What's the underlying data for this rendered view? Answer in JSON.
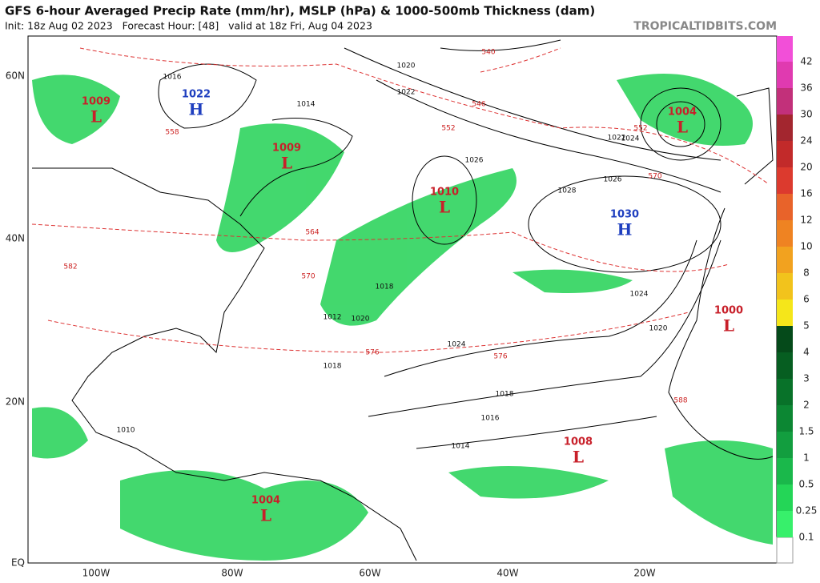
{
  "header": {
    "title": "GFS 6-hour Averaged Precip Rate (mm/hr), MSLP (hPa) & 1000-500mb Thickness (dam)",
    "subtitle": "Init: 18z Aug 02 2023   Forecast Hour: [48]   valid at 18z Fri, Aug 04 2023",
    "site": "TROPICALTIDBITS.COM"
  },
  "axes": {
    "lat_labels": [
      "60N",
      "40N",
      "20N",
      "EQ"
    ],
    "lon_labels": [
      "100W",
      "80W",
      "60W",
      "40W",
      "20W"
    ]
  },
  "centers": [
    {
      "letter": "L",
      "value": "1009"
    },
    {
      "letter": "H",
      "value": "1022"
    },
    {
      "letter": "L",
      "value": "1009"
    },
    {
      "letter": "L",
      "value": "1010"
    },
    {
      "letter": "H",
      "value": "1030"
    },
    {
      "letter": "L",
      "value": "1004"
    },
    {
      "letter": "L",
      "value": "1000"
    },
    {
      "letter": "L",
      "value": "1008"
    },
    {
      "letter": "L",
      "value": "1004"
    }
  ],
  "isobar_labels": [
    "1020",
    "1022",
    "1024",
    "1026",
    "1028",
    "1024",
    "1022",
    "1020",
    "1018",
    "1016",
    "1014",
    "1018",
    "1016",
    "1014",
    "1012",
    "1010",
    "1026",
    "1024",
    "1020",
    "1018"
  ],
  "thickness_labels": [
    "546",
    "552",
    "558",
    "564",
    "570",
    "576",
    "582",
    "588",
    "552",
    "570",
    "576",
    "540"
  ],
  "colorbar": {
    "labels": [
      "0.1",
      "0.25",
      "0.5",
      "1",
      "1.5",
      "2",
      "3",
      "4",
      "5",
      "6",
      "8",
      "10",
      "12",
      "16",
      "20",
      "24",
      "30",
      "36",
      "42"
    ],
    "colors": [
      "#37f06b",
      "#24d657",
      "#1ab84b",
      "#129e3f",
      "#0c8733",
      "#087229",
      "#065e21",
      "#054a1a",
      "#f5e61a",
      "#f2c31c",
      "#f2a21f",
      "#ef8322",
      "#e8632a",
      "#dc3a2e",
      "#c22a2a",
      "#a3262f",
      "#c2307a",
      "#e03ab0",
      "#f24fd8"
    ]
  }
}
